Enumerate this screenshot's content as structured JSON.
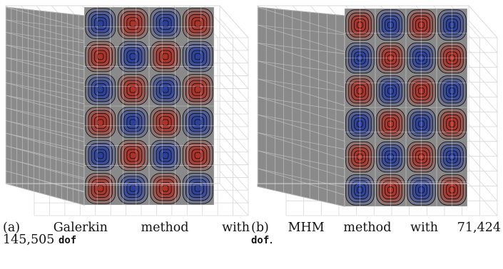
{
  "figure": {
    "panels": [
      {
        "id": "a",
        "caption_prefix": "(a)",
        "caption_words": [
          "Galerkin",
          "method",
          "with"
        ],
        "caption_line2": "145,505",
        "caption_code": "dof",
        "caption_suffix": "",
        "mode_rows": 6,
        "mode_cols": 4
      },
      {
        "id": "b",
        "caption_prefix": "(b)",
        "caption_words": [
          "MHM",
          "method",
          "with",
          "71,424"
        ],
        "caption_line2": "",
        "caption_code": "dof",
        "caption_suffix": ".",
        "mode_rows": 6,
        "mode_cols": 4
      }
    ],
    "colors": {
      "surface": "#8a8a8a",
      "wire": "#d8d8d8",
      "positive": "#b03025",
      "negative": "#2a3f9e",
      "contour": "#111111"
    }
  }
}
